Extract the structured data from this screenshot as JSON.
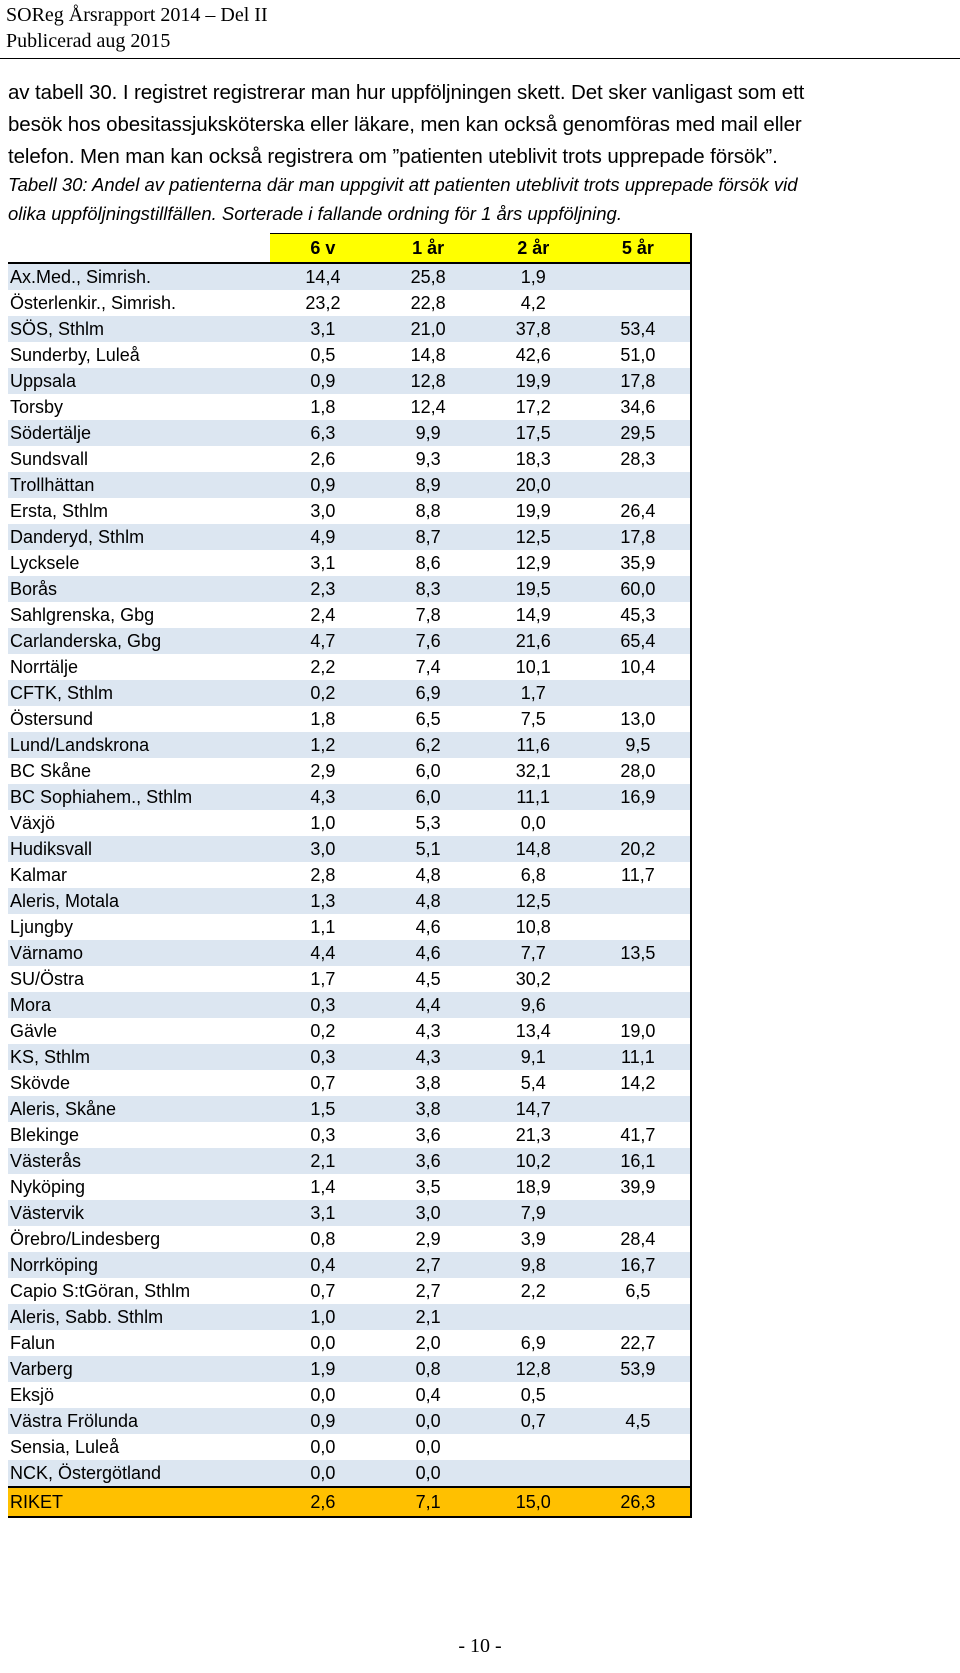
{
  "header": {
    "line1": "SOReg Årsrapport 2014 – Del II",
    "line2": "Publicerad aug 2015"
  },
  "body_text": [
    "av tabell 30. I registret registrerar man hur uppföljningen skett. Det sker vanligast som ett",
    "besök hos obesitassjuksköterska eller läkare, men kan också genomföras med mail eller",
    "telefon. Men man kan också registrera om ”patienten uteblivit trots upprepade försök”."
  ],
  "caption": [
    "Tabell 30: Andel av patienterna där man uppgivit att patienten uteblivit trots upprepade försök vid",
    "olika uppföljningstillfällen. Sorterade i fallande ordning för 1 års uppföljning."
  ],
  "table": {
    "columns": [
      "",
      "6 v",
      "1 år",
      "2 år",
      "5 år"
    ],
    "rows": [
      [
        "Ax.Med., Simrish.",
        "14,4",
        "25,8",
        "1,9",
        ""
      ],
      [
        "Österlenkir., Simrish.",
        "23,2",
        "22,8",
        "4,2",
        ""
      ],
      [
        "SÖS, Sthlm",
        "3,1",
        "21,0",
        "37,8",
        "53,4"
      ],
      [
        "Sunderby, Luleå",
        "0,5",
        "14,8",
        "42,6",
        "51,0"
      ],
      [
        "Uppsala",
        "0,9",
        "12,8",
        "19,9",
        "17,8"
      ],
      [
        "Torsby",
        "1,8",
        "12,4",
        "17,2",
        "34,6"
      ],
      [
        "Södertälje",
        "6,3",
        "9,9",
        "17,5",
        "29,5"
      ],
      [
        "Sundsvall",
        "2,6",
        "9,3",
        "18,3",
        "28,3"
      ],
      [
        "Trollhättan",
        "0,9",
        "8,9",
        "20,0",
        ""
      ],
      [
        "Ersta, Sthlm",
        "3,0",
        "8,8",
        "19,9",
        "26,4"
      ],
      [
        "Danderyd, Sthlm",
        "4,9",
        "8,7",
        "12,5",
        "17,8"
      ],
      [
        "Lycksele",
        "3,1",
        "8,6",
        "12,9",
        "35,9"
      ],
      [
        "Borås",
        "2,3",
        "8,3",
        "19,5",
        "60,0"
      ],
      [
        "Sahlgrenska, Gbg",
        "2,4",
        "7,8",
        "14,9",
        "45,3"
      ],
      [
        "Carlanderska,  Gbg",
        "4,7",
        "7,6",
        "21,6",
        "65,4"
      ],
      [
        "Norrtälje",
        "2,2",
        "7,4",
        "10,1",
        "10,4"
      ],
      [
        "CFTK, Sthlm",
        "0,2",
        "6,9",
        "1,7",
        ""
      ],
      [
        "Östersund",
        "1,8",
        "6,5",
        "7,5",
        "13,0"
      ],
      [
        "Lund/Landskrona",
        "1,2",
        "6,2",
        "11,6",
        "9,5"
      ],
      [
        "BC Skåne",
        "2,9",
        "6,0",
        "32,1",
        "28,0"
      ],
      [
        "BC Sophiahem., Sthlm",
        "4,3",
        "6,0",
        "11,1",
        "16,9"
      ],
      [
        "Växjö",
        "1,0",
        "5,3",
        "0,0",
        ""
      ],
      [
        "Hudiksvall",
        "3,0",
        "5,1",
        "14,8",
        "20,2"
      ],
      [
        "Kalmar",
        "2,8",
        "4,8",
        "6,8",
        "11,7"
      ],
      [
        "Aleris, Motala",
        "1,3",
        "4,8",
        "12,5",
        ""
      ],
      [
        "Ljungby",
        "1,1",
        "4,6",
        "10,8",
        ""
      ],
      [
        "Värnamo",
        "4,4",
        "4,6",
        "7,7",
        "13,5"
      ],
      [
        "SU/Östra",
        "1,7",
        "4,5",
        "30,2",
        ""
      ],
      [
        "Mora",
        "0,3",
        "4,4",
        "9,6",
        ""
      ],
      [
        "Gävle",
        "0,2",
        "4,3",
        "13,4",
        "19,0"
      ],
      [
        "KS, Sthlm",
        "0,3",
        "4,3",
        "9,1",
        "11,1"
      ],
      [
        "Skövde",
        "0,7",
        "3,8",
        "5,4",
        "14,2"
      ],
      [
        "Aleris, Skåne",
        "1,5",
        "3,8",
        "14,7",
        ""
      ],
      [
        "Blekinge",
        "0,3",
        "3,6",
        "21,3",
        "41,7"
      ],
      [
        "Västerås",
        "2,1",
        "3,6",
        "10,2",
        "16,1"
      ],
      [
        "Nyköping",
        "1,4",
        "3,5",
        "18,9",
        "39,9"
      ],
      [
        "Västervik",
        "3,1",
        "3,0",
        "7,9",
        ""
      ],
      [
        "Örebro/Lindesberg",
        "0,8",
        "2,9",
        "3,9",
        "28,4"
      ],
      [
        "Norrköping",
        "0,4",
        "2,7",
        "9,8",
        "16,7"
      ],
      [
        "Capio S:tGöran, Sthlm",
        "0,7",
        "2,7",
        "2,2",
        "6,5"
      ],
      [
        "Aleris, Sabb. Sthlm",
        "1,0",
        "2,1",
        "",
        ""
      ],
      [
        "Falun",
        "0,0",
        "2,0",
        "6,9",
        "22,7"
      ],
      [
        "Varberg",
        "1,9",
        "0,8",
        "12,8",
        "53,9"
      ],
      [
        "Eksjö",
        "0,0",
        "0,4",
        "0,5",
        ""
      ],
      [
        "Västra Frölunda",
        "0,9",
        "0,0",
        "0,7",
        "4,5"
      ],
      [
        "Sensia, Luleå",
        "0,0",
        "0,0",
        "",
        ""
      ],
      [
        "NCK, Östergötland",
        "0,0",
        "0,0",
        "",
        ""
      ]
    ],
    "total": [
      "RIKET",
      "2,6",
      "7,1",
      "15,0",
      "26,3"
    ]
  },
  "page_number": "- 10 -",
  "colors": {
    "header_fill": "#ffff00",
    "row_stripe": "#dce6f1",
    "total_fill": "#ffc000"
  }
}
